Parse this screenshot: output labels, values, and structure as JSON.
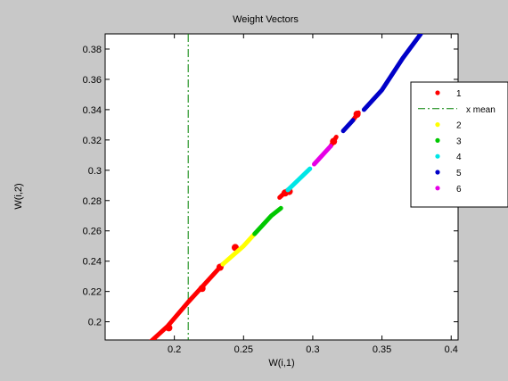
{
  "chart_data": {
    "type": "line",
    "title": "Weight Vectors",
    "xlabel": "W(i,1)",
    "ylabel": "W(i,2)",
    "xlim": [
      0.15,
      0.405
    ],
    "ylim": [
      0.188,
      0.39
    ],
    "x_ticks": [
      "0.2",
      "0.25",
      "0.3",
      "0.35",
      "0.4"
    ],
    "x_tick_values": [
      0.2,
      0.25,
      0.3,
      0.35,
      0.4
    ],
    "y_ticks": [
      "0.2",
      "0.22",
      "0.24",
      "0.26",
      "0.28",
      "0.3",
      "0.32",
      "0.34",
      "0.36",
      "0.38"
    ],
    "y_tick_values": [
      0.2,
      0.22,
      0.24,
      0.26,
      0.28,
      0.3,
      0.32,
      0.34,
      0.36,
      0.38
    ],
    "grid": false,
    "legend_position": "right",
    "x_mean": 0.21,
    "series": [
      {
        "name": "1",
        "color": "#ff0000",
        "marker": "dot",
        "segments": [
          [
            [
              0.183,
              0.187
            ],
            [
              0.195,
              0.197
            ],
            [
              0.21,
              0.213
            ],
            [
              0.225,
              0.228
            ],
            [
              0.235,
              0.238
            ]
          ],
          [
            [
              0.276,
              0.282
            ],
            [
              0.282,
              0.287
            ]
          ],
          [
            [
              0.313,
              0.316
            ],
            [
              0.317,
              0.322
            ]
          ],
          [
            [
              0.329,
              0.333
            ],
            [
              0.333,
              0.338
            ]
          ]
        ],
        "points": [
          [
            0.196,
            0.196
          ],
          [
            0.22,
            0.222
          ],
          [
            0.233,
            0.236
          ],
          [
            0.244,
            0.249
          ],
          [
            0.28,
            0.285
          ],
          [
            0.283,
            0.286
          ],
          [
            0.315,
            0.319
          ],
          [
            0.332,
            0.337
          ]
        ]
      },
      {
        "name": "x mean",
        "color": "#008000",
        "style": "dash-dot"
      },
      {
        "name": "2",
        "color": "#ffff00",
        "marker": "dot",
        "segments": [
          [
            [
              0.235,
              0.238
            ],
            [
              0.25,
              0.25
            ],
            [
              0.258,
              0.258
            ]
          ]
        ]
      },
      {
        "name": "3",
        "color": "#00c800",
        "marker": "dot",
        "segments": [
          [
            [
              0.258,
              0.258
            ],
            [
              0.27,
              0.27
            ],
            [
              0.277,
              0.275
            ]
          ]
        ]
      },
      {
        "name": "4",
        "color": "#00e6e6",
        "marker": "dot",
        "segments": [
          [
            [
              0.282,
              0.287
            ],
            [
              0.29,
              0.294
            ],
            [
              0.298,
              0.301
            ]
          ]
        ]
      },
      {
        "name": "5",
        "color": "#0000c8",
        "marker": "dot",
        "segments": [
          [
            [
              0.322,
              0.326
            ],
            [
              0.329,
              0.333
            ]
          ],
          [
            [
              0.337,
              0.34
            ],
            [
              0.35,
              0.353
            ],
            [
              0.365,
              0.374
            ],
            [
              0.378,
              0.39
            ]
          ]
        ]
      },
      {
        "name": "6",
        "color": "#e600e6",
        "marker": "dot",
        "segments": [
          [
            [
              0.301,
              0.304
            ],
            [
              0.31,
              0.313
            ],
            [
              0.313,
              0.316
            ]
          ]
        ]
      }
    ]
  }
}
